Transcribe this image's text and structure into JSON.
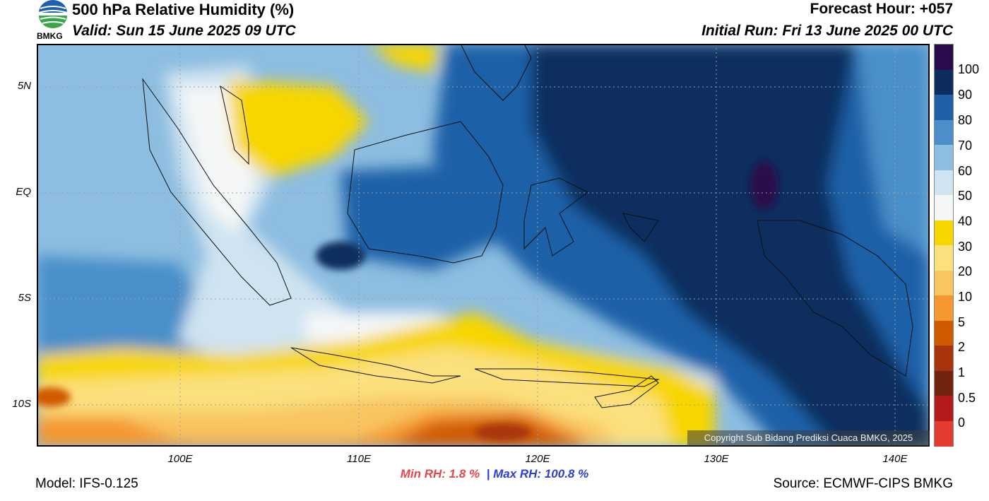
{
  "header": {
    "title": "500 hPa Relative Humidity (%)",
    "valid": "Valid: Sun 15 June 2025 09 UTC",
    "forecast_hour": "Forecast Hour: +057",
    "initial_run": "Initial Run: Fri 13 June 2025 00 UTC"
  },
  "logo": {
    "text": "BMKG"
  },
  "map": {
    "lat_labels": [
      "5N",
      "EQ",
      "5S",
      "10S"
    ],
    "lon_labels": [
      "100E",
      "110E",
      "120E",
      "130E",
      "140E"
    ],
    "copyright": "Copyright Sub Bidang Prediksi Cuaca BMKG, 2025",
    "extent": {
      "lon": [
        92,
        142
      ],
      "lat": [
        -12,
        7
      ]
    }
  },
  "colorbar": {
    "levels": [
      "100",
      "90",
      "80",
      "70",
      "60",
      "50",
      "40",
      "30",
      "20",
      "10",
      "5",
      "2",
      "1",
      "0.5",
      "0"
    ],
    "colors": [
      "#2a0c4c",
      "#0c2d5e",
      "#1f60a7",
      "#4a8fc9",
      "#8dbde0",
      "#cfe3f1",
      "#f5f7f7",
      "#f7d600",
      "#fce07d",
      "#f8c560",
      "#f5972e",
      "#d05a00",
      "#a9340c",
      "#70240d",
      "#b51b1b",
      "#e53b31"
    ]
  },
  "footer": {
    "min_rh": "Min RH:   1.8 %",
    "separator": "|",
    "max_rh": "Max RH: 100.8 %",
    "model": "Model: IFS-0.125",
    "source": "Source: ECMWF-CIPS BMKG"
  }
}
